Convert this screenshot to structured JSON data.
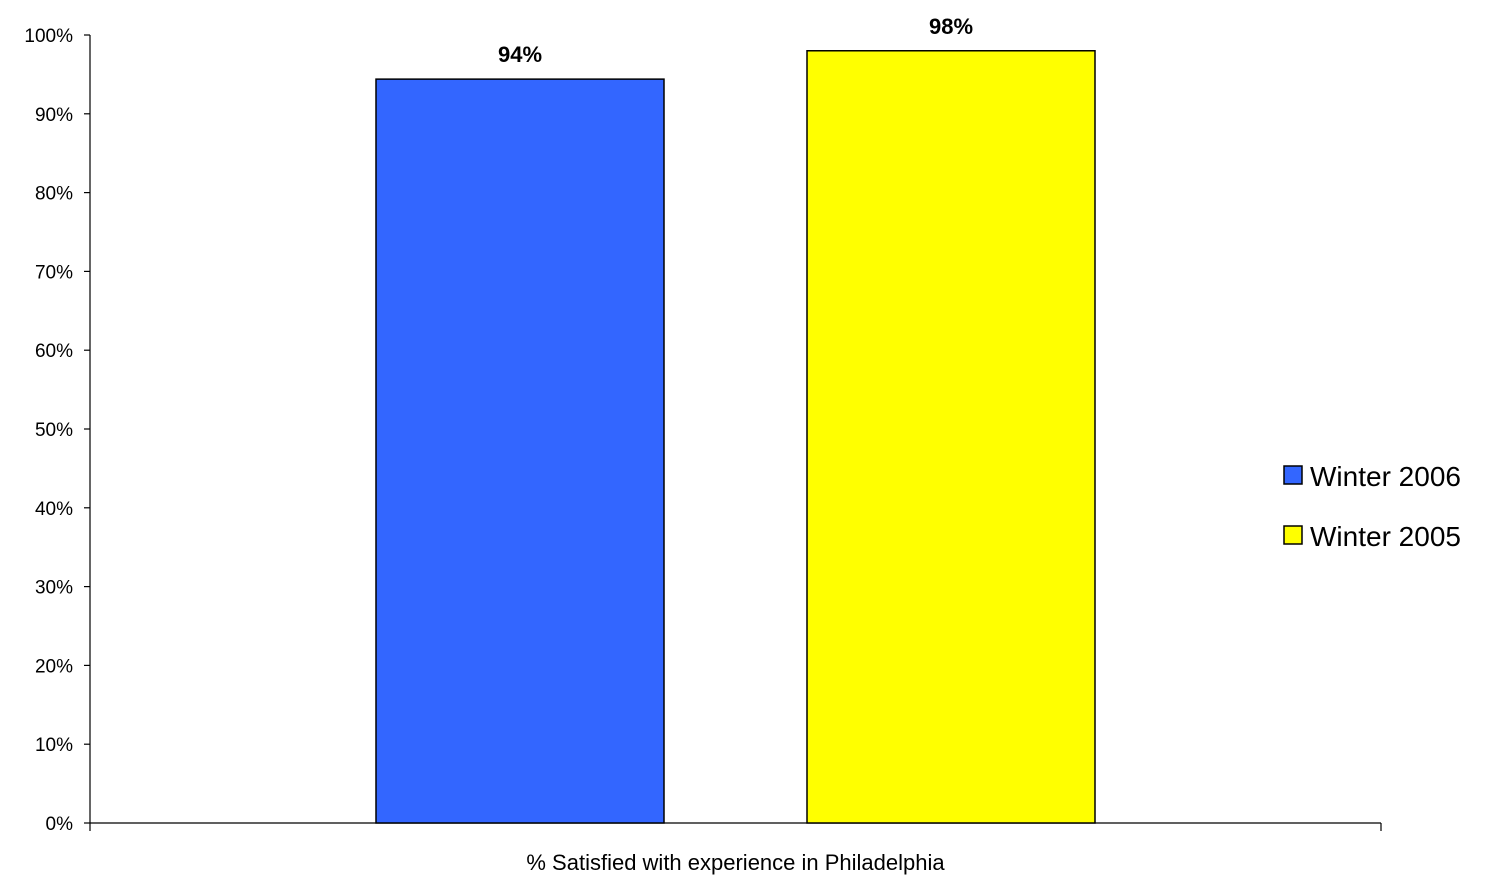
{
  "chart_data": {
    "type": "bar",
    "categories": [
      "% Satisfied with experience in Philadelphia"
    ],
    "series": [
      {
        "name": "Winter 2006",
        "values": [
          94.4
        ],
        "label": "94%",
        "color": "#3366ff"
      },
      {
        "name": "Winter 2005",
        "values": [
          98.0
        ],
        "label": "98%",
        "color": "#ffff00"
      }
    ],
    "y_ticks": [
      "0%",
      "10%",
      "20%",
      "30%",
      "40%",
      "50%",
      "60%",
      "70%",
      "80%",
      "90%",
      "100%"
    ],
    "ylim": [
      0,
      100
    ],
    "grid": false,
    "legend_position": "right"
  }
}
